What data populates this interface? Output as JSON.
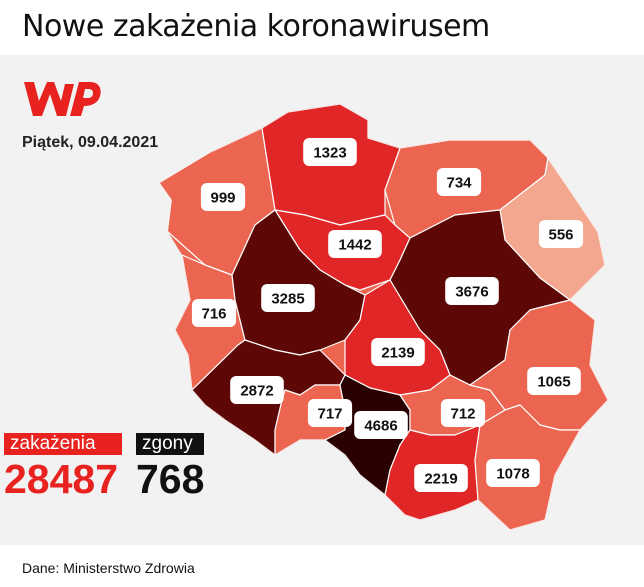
{
  "header": {
    "title": "Nowe zakażenia koronawirusem"
  },
  "brand": {
    "logo_name": "WP logo",
    "logo_color": "#e8231f"
  },
  "date": "Piątek, 09.04.2021",
  "legend": {
    "cases_label": "zakażenia",
    "deaths_label": "zgony",
    "cases_total": "28487",
    "deaths_total": "768",
    "cases_color": "#e8231f",
    "deaths_color": "#111111"
  },
  "footer": {
    "source": "Dane: Ministerstwo Zdrowia"
  },
  "regions": [
    {
      "name": "zachodniopomorskie",
      "value": "999",
      "color": "#ec6550"
    },
    {
      "name": "pomorskie",
      "value": "1323",
      "color": "#e02626"
    },
    {
      "name": "warmińsko-mazurskie",
      "value": "734",
      "color": "#ec6550"
    },
    {
      "name": "podlaskie",
      "value": "556",
      "color": "#f4a78f"
    },
    {
      "name": "kujawsko-pomorskie",
      "value": "1442",
      "color": "#e02626"
    },
    {
      "name": "lubuskie",
      "value": "716",
      "color": "#ec6550"
    },
    {
      "name": "wielkopolskie",
      "value": "3285",
      "color": "#5e0707"
    },
    {
      "name": "mazowieckie",
      "value": "3676",
      "color": "#5e0707"
    },
    {
      "name": "łódzkie",
      "value": "2139",
      "color": "#e02626"
    },
    {
      "name": "dolnośląskie",
      "value": "2872",
      "color": "#5e0707"
    },
    {
      "name": "opolskie",
      "value": "717",
      "color": "#ec6550"
    },
    {
      "name": "śląskie",
      "value": "4686",
      "color": "#2a0000"
    },
    {
      "name": "świętokrzyskie",
      "value": "712",
      "color": "#ec6550"
    },
    {
      "name": "lubelskie",
      "value": "1065",
      "color": "#ec6550"
    },
    {
      "name": "małopolskie",
      "value": "2219",
      "color": "#e02626"
    },
    {
      "name": "podkarpackie",
      "value": "1078",
      "color": "#ec6550"
    }
  ]
}
